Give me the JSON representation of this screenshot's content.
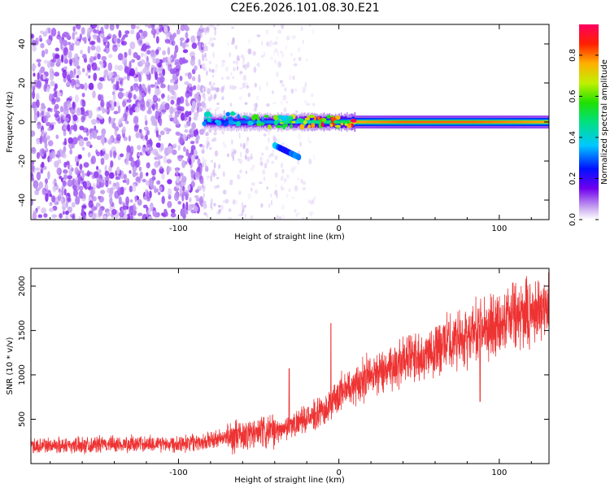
{
  "title": "C2E6.2026.101.08.30.E21",
  "chart_data": [
    {
      "type": "heatmap",
      "title": "C2E6.2026.101.08.30.E21",
      "xlabel": "Height of straight line (km)",
      "ylabel": "Frequency (Hz)",
      "xlim": [
        -192,
        131
      ],
      "ylim": [
        -50,
        50
      ],
      "x_ticks": [
        -100,
        0,
        100
      ],
      "x_tick_labels": [
        "-100",
        "0",
        "100"
      ],
      "y_ticks": [
        -40,
        -20,
        0,
        20,
        40
      ],
      "y_tick_labels": [
        "-40",
        "-20",
        "0",
        "20",
        "40"
      ],
      "colorbar": {
        "label": "Normalized spectral amplitude",
        "range": [
          0,
          0.95
        ],
        "ticks": [
          0,
          0.2,
          0.4,
          0.6,
          0.8
        ],
        "tick_labels": [
          "0.0",
          "0.2",
          "0.4",
          "0.6",
          "0.8"
        ]
      },
      "regions": [
        {
          "name": "noise",
          "x": [
            -192,
            -85
          ],
          "amplitude": 0.08
        },
        {
          "name": "fading noise",
          "x": [
            -85,
            -15
          ],
          "amplitude": 0.03
        },
        {
          "name": "signal track",
          "x": [
            -84,
            131
          ],
          "frequency": 0,
          "amplitude_profile": [
            [
              -84,
              0.25
            ],
            [
              -60,
              0.35
            ],
            [
              -30,
              0.4
            ],
            [
              -10,
              0.55
            ],
            [
              5,
              0.6
            ],
            [
              10,
              0.9
            ],
            [
              40,
              0.95
            ],
            [
              85,
              0.95
            ],
            [
              131,
              0.9
            ]
          ]
        },
        {
          "name": "side feature",
          "x": [
            -40,
            -25
          ],
          "frequency": [
            -12,
            -18
          ],
          "amplitude": 0.3
        }
      ]
    },
    {
      "type": "line",
      "xlabel": "Height of straight line (km)",
      "ylabel": "SNR (10 * v/v)",
      "xlim": [
        -192,
        131
      ],
      "ylim": [
        0,
        2200
      ],
      "x_ticks": [
        -100,
        0,
        100
      ],
      "x_tick_labels": [
        "-100",
        "0",
        "100"
      ],
      "y_ticks": [
        500,
        1000,
        1500,
        2000
      ],
      "y_tick_labels": [
        "500",
        "1000",
        "1500",
        "2000"
      ],
      "series": [
        {
          "name": "SNR",
          "color": "#ee3333",
          "trend": {
            "x": [
              -192,
              -150,
              -100,
              -80,
              -60,
              -40,
              -20,
              -5,
              0,
              20,
              40,
              60,
              80,
              100,
              131
            ],
            "y": [
              200,
              215,
              230,
              260,
              320,
              360,
              500,
              650,
              800,
              1000,
              1150,
              1300,
              1450,
              1600,
              1760
            ]
          },
          "spikes": [
            {
              "x": -5,
              "y": 1580
            },
            {
              "x": -31,
              "y": 1070
            },
            {
              "x": 88,
              "y": 700
            }
          ]
        }
      ]
    }
  ]
}
